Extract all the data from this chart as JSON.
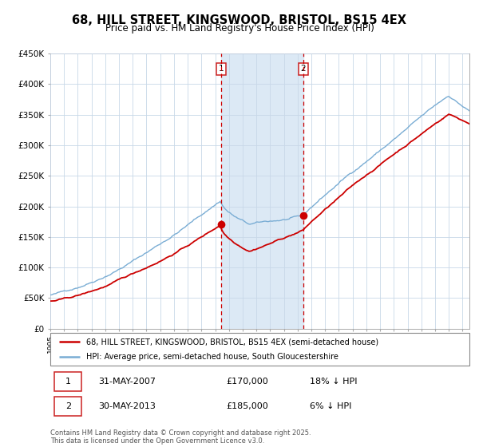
{
  "title": "68, HILL STREET, KINGSWOOD, BRISTOL, BS15 4EX",
  "subtitle": "Price paid vs. HM Land Registry's House Price Index (HPI)",
  "legend_line1": "68, HILL STREET, KINGSWOOD, BRISTOL, BS15 4EX (semi-detached house)",
  "legend_line2": "HPI: Average price, semi-detached house, South Gloucestershire",
  "footnote": "Contains HM Land Registry data © Crown copyright and database right 2025.\nThis data is licensed under the Open Government Licence v3.0.",
  "red_color": "#cc0000",
  "blue_color": "#7aadd4",
  "shade_color": "#dce9f5",
  "sale1_year": 2007.415,
  "sale2_year": 2013.415,
  "sale1_price": 170000,
  "sale2_price": 185000,
  "ymax": 450000,
  "ymin": 0,
  "xmin": 1995,
  "xmax": 2025.5
}
